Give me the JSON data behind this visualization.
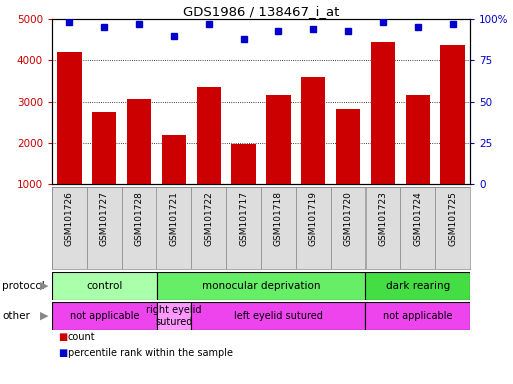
{
  "title": "GDS1986 / 138467_i_at",
  "samples": [
    "GSM101726",
    "GSM101727",
    "GSM101728",
    "GSM101721",
    "GSM101722",
    "GSM101717",
    "GSM101718",
    "GSM101719",
    "GSM101720",
    "GSM101723",
    "GSM101724",
    "GSM101725"
  ],
  "counts": [
    4200,
    2750,
    3050,
    2200,
    3350,
    1980,
    3150,
    3600,
    2820,
    4450,
    3150,
    4380
  ],
  "percentiles": [
    98,
    95,
    97,
    90,
    97,
    88,
    93,
    94,
    93,
    98,
    95,
    97
  ],
  "bar_color": "#cc0000",
  "dot_color": "#0000cc",
  "ylim_left": [
    1000,
    5000
  ],
  "ylim_right": [
    0,
    100
  ],
  "yticks_left": [
    1000,
    2000,
    3000,
    4000,
    5000
  ],
  "yticks_right": [
    0,
    25,
    50,
    75,
    100
  ],
  "protocol_groups": [
    {
      "label": "control",
      "start": 0,
      "end": 3,
      "color": "#aaffaa"
    },
    {
      "label": "monocular deprivation",
      "start": 3,
      "end": 9,
      "color": "#66ee66"
    },
    {
      "label": "dark rearing",
      "start": 9,
      "end": 12,
      "color": "#44dd44"
    }
  ],
  "other_groups": [
    {
      "label": "not applicable",
      "start": 0,
      "end": 3,
      "color": "#ee44ee"
    },
    {
      "label": "right eyelid\nsutured",
      "start": 3,
      "end": 4,
      "color": "#ff99ff"
    },
    {
      "label": "left eyelid sutured",
      "start": 4,
      "end": 9,
      "color": "#ee44ee"
    },
    {
      "label": "not applicable",
      "start": 9,
      "end": 12,
      "color": "#ee44ee"
    }
  ],
  "legend_items": [
    {
      "label": "count",
      "color": "#cc0000"
    },
    {
      "label": "percentile rank within the sample",
      "color": "#0000cc"
    }
  ],
  "bar_axis_color": "#cc0000",
  "pct_axis_color": "#0000cc",
  "label_bg": "#dddddd",
  "label_edge": "#888888"
}
